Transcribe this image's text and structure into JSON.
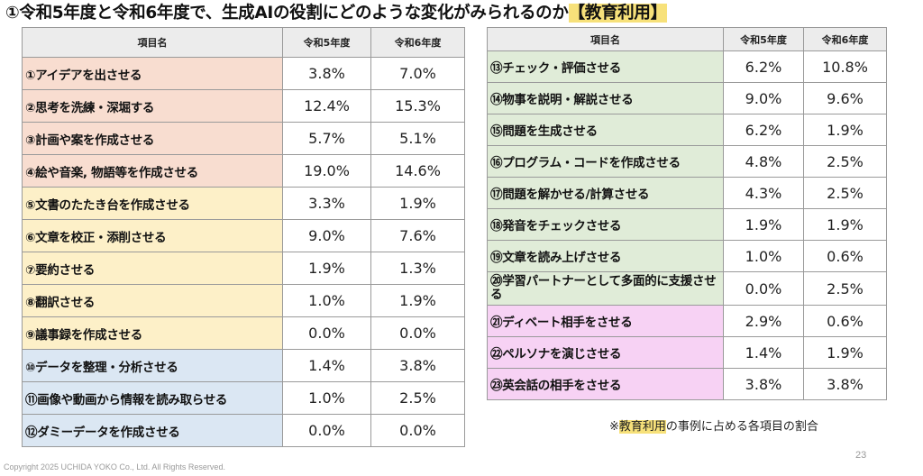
{
  "title": {
    "main": "①令和5年度と令和6年度で、生成AIの役割にどのような変化がみられるのか",
    "highlight": "【教育利用】"
  },
  "headers": {
    "item": "項目名",
    "r5": "令和5年度",
    "r6": "令和6年度"
  },
  "left_rows": [
    {
      "label": "①アイデアを出させる",
      "r5": "3.8%",
      "r6": "7.0%"
    },
    {
      "label": "②思考を洗練・深堀する",
      "r5": "12.4%",
      "r6": "15.3%"
    },
    {
      "label": "③計画や案を作成させる",
      "r5": "5.7%",
      "r6": "5.1%"
    },
    {
      "label": "④絵や音楽, 物語等を作成させる",
      "r5": "19.0%",
      "r6": "14.6%"
    },
    {
      "label": "⑤文書のたたき台を作成させる",
      "r5": "3.3%",
      "r6": "1.9%"
    },
    {
      "label": "⑥文章を校正・添削させる",
      "r5": "9.0%",
      "r6": "7.6%"
    },
    {
      "label": "⑦要約させる",
      "r5": "1.9%",
      "r6": "1.3%"
    },
    {
      "label": "⑧翻訳させる",
      "r5": "1.0%",
      "r6": "1.9%"
    },
    {
      "label": "⑨議事録を作成させる",
      "r5": "0.0%",
      "r6": "0.0%"
    },
    {
      "label": "⑩データを整理・分析させる",
      "r5": "1.4%",
      "r6": "3.8%"
    },
    {
      "label": "⑪画像や動画から情報を読み取らせる",
      "r5": "1.0%",
      "r6": "2.5%"
    },
    {
      "label": "⑫ダミーデータを作成させる",
      "r5": "0.0%",
      "r6": "0.0%"
    }
  ],
  "right_rows": [
    {
      "label": "⑬チェック・評価させる",
      "r5": "6.2%",
      "r6": "10.8%"
    },
    {
      "label": "⑭物事を説明・解説させる",
      "r5": "9.0%",
      "r6": "9.6%"
    },
    {
      "label": "⑮問題を生成させる",
      "r5": "6.2%",
      "r6": "1.9%"
    },
    {
      "label": "⑯プログラム・コードを作成させる",
      "r5": "4.8%",
      "r6": "2.5%"
    },
    {
      "label": "⑰問題を解かせる/計算させる",
      "r5": "4.3%",
      "r6": "2.5%"
    },
    {
      "label": "⑱発音をチェックさせる",
      "r5": "1.9%",
      "r6": "1.9%"
    },
    {
      "label": "⑲文章を読み上げさせる",
      "r5": "1.0%",
      "r6": "0.6%"
    },
    {
      "label": "⑳学習パートナーとして多面的に支援させる",
      "r5": "0.0%",
      "r6": "2.5%"
    },
    {
      "label": "㉑ディベート相手をさせる",
      "r5": "2.9%",
      "r6": "0.6%"
    },
    {
      "label": "㉒ペルソナを演じさせる",
      "r5": "1.4%",
      "r6": "1.9%"
    },
    {
      "label": "㉓英会話の相手をさせる",
      "r5": "3.8%",
      "r6": "3.8%"
    }
  ],
  "group_colors": {
    "orange": "#f8ddd0",
    "yellow": "#fdf0c8",
    "blue": "#dbe7f3",
    "green": "#e0ecd8",
    "pink": "#f7d2f4",
    "highlight": "#f7e17a"
  },
  "footnote": {
    "prefix": "※",
    "highlight": "教育利用",
    "suffix": "の事例に占める各項目の割合"
  },
  "copyright": "Copyright 2025 UCHIDA YOKO Co., Ltd. All Rights Reserved.",
  "page_number": "23"
}
